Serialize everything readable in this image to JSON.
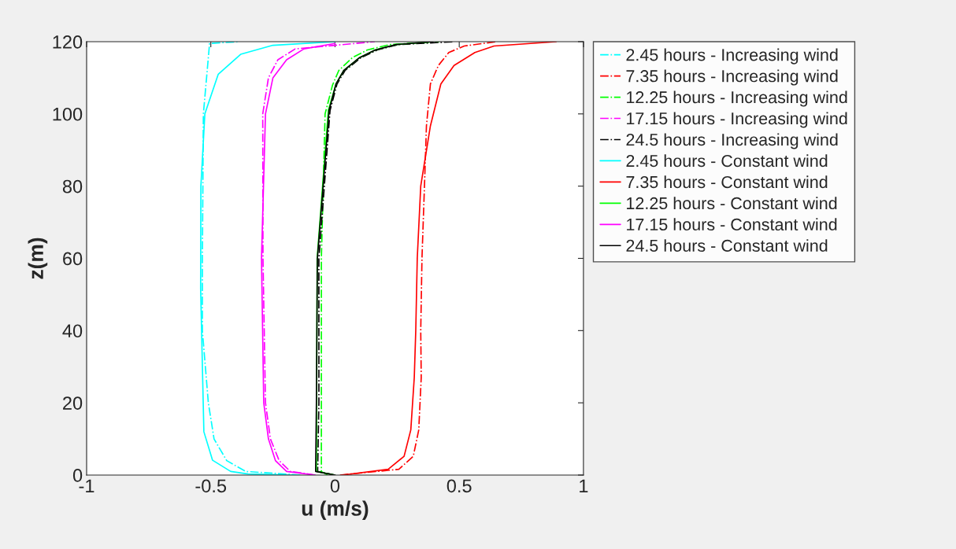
{
  "chart_data": {
    "type": "line",
    "xlabel": "u (m/s)",
    "ylabel": "z(m)",
    "xlim": [
      -1,
      1
    ],
    "xticks": [
      -1,
      -0.5,
      0,
      0.5,
      1
    ],
    "ylim": [
      0,
      120
    ],
    "yticks": [
      0,
      20,
      40,
      60,
      80,
      100,
      120
    ],
    "grid": false,
    "legend": "right",
    "marker": "none",
    "series": [
      {
        "name": "2.45 hours - Increasing wind",
        "color": "#00ffff",
        "line_style": "dashed",
        "x": [
          -0.14,
          -0.36,
          -0.436,
          -0.487,
          -0.51,
          -0.534,
          -0.534,
          -0.53,
          -0.505,
          -0.39
        ],
        "values": [
          0,
          1,
          4,
          10,
          20,
          40,
          60,
          100,
          119.5,
          120
        ]
      },
      {
        "name": "7.35 hours - Increasing wind",
        "color": "#ff0000",
        "line_style": "dashed",
        "x": [
          0.02,
          0.257,
          0.315,
          0.337,
          0.347,
          0.345,
          0.35,
          0.36,
          0.368,
          0.384,
          0.416,
          0.458,
          0.52,
          0.65
        ],
        "values": [
          0,
          1.6,
          5.2,
          12.5,
          27,
          40,
          60,
          80,
          96.7,
          108.3,
          113.4,
          117,
          118.8,
          120
        ]
      },
      {
        "name": "12.25 hours - Increasing wind",
        "color": "#00ff00",
        "line_style": "dashed",
        "x": [
          -0.03,
          -0.055,
          -0.055,
          -0.055,
          -0.04,
          -0.01,
          0.015,
          0.07,
          0.13,
          0.22,
          0.42
        ],
        "values": [
          0,
          1,
          20,
          60,
          100,
          108,
          112,
          115.6,
          117.7,
          119.2,
          120
        ]
      },
      {
        "name": "17.15 hours - Increasing wind",
        "color": "#ff00ff",
        "line_style": "dashed",
        "x": [
          -0.08,
          -0.18,
          -0.225,
          -0.26,
          -0.28,
          -0.29,
          -0.291,
          -0.268,
          -0.23,
          -0.16,
          0.16
        ],
        "values": [
          0,
          1,
          4,
          10,
          20,
          60,
          100,
          110,
          115,
          118,
          120
        ]
      },
      {
        "name": "24.5 hours - Increasing wind",
        "color": "#000000",
        "line_style": "dashed",
        "x": [
          0,
          -0.07,
          -0.065,
          -0.065,
          -0.02,
          0.008,
          0.04,
          0.105,
          0.17,
          0.255,
          0.48
        ],
        "values": [
          0,
          1,
          20,
          60,
          101,
          108.3,
          112,
          115.6,
          117.7,
          119.2,
          120
        ]
      },
      {
        "name": "2.45 hours - Constant wind",
        "color": "#00ffff",
        "line_style": "solid",
        "x": [
          -0.17,
          -0.35,
          -0.42,
          -0.493,
          -0.528,
          -0.541,
          -0.54,
          -0.524,
          -0.47,
          -0.38,
          -0.25,
          0.0
        ],
        "values": [
          0,
          0.3,
          1,
          4.1,
          12,
          51.6,
          80,
          100,
          111,
          116.5,
          119,
          120
        ]
      },
      {
        "name": "7.35 hours - Constant wind",
        "color": "#ff0000",
        "line_style": "solid",
        "x": [
          0.03,
          0.214,
          0.278,
          0.305,
          0.319,
          0.325,
          0.331,
          0.345,
          0.384,
          0.426,
          0.479,
          0.563,
          0.64,
          0.89
        ],
        "values": [
          0,
          1.6,
          5.2,
          12.5,
          27,
          40,
          60,
          80,
          96.7,
          108.3,
          113.4,
          117,
          118.8,
          120
        ]
      },
      {
        "name": "12.25 hours - Constant wind",
        "color": "#00ff00",
        "line_style": "solid",
        "x": [
          0,
          -0.075,
          -0.074,
          -0.072,
          -0.027,
          0.004,
          0.035,
          0.099,
          0.162,
          0.246,
          0.39
        ],
        "values": [
          0,
          1,
          null,
          60,
          101,
          108.3,
          112,
          115.6,
          117.7,
          119.2,
          120
        ]
      },
      {
        "name": "17.15 hours - Constant wind",
        "color": "#ff00ff",
        "line_style": "solid",
        "x": [
          -0.08,
          -0.195,
          -0.24,
          -0.268,
          -0.287,
          -0.296,
          -0.28,
          -0.25,
          -0.195,
          -0.125,
          0.0
        ],
        "values": [
          0,
          1,
          4,
          10,
          20,
          60,
          100,
          110,
          115,
          118,
          119.5
        ]
      },
      {
        "name": "24.5 hours - Constant wind",
        "color": "#000000",
        "line_style": "solid",
        "x": [
          0,
          -0.078,
          -0.075,
          -0.071,
          -0.024,
          0.004,
          0.035,
          0.099,
          0.162,
          0.246,
          0.395
        ],
        "values": [
          0,
          1,
          20,
          60,
          101,
          108.3,
          112,
          115.6,
          117.7,
          119.2,
          120
        ]
      }
    ]
  }
}
